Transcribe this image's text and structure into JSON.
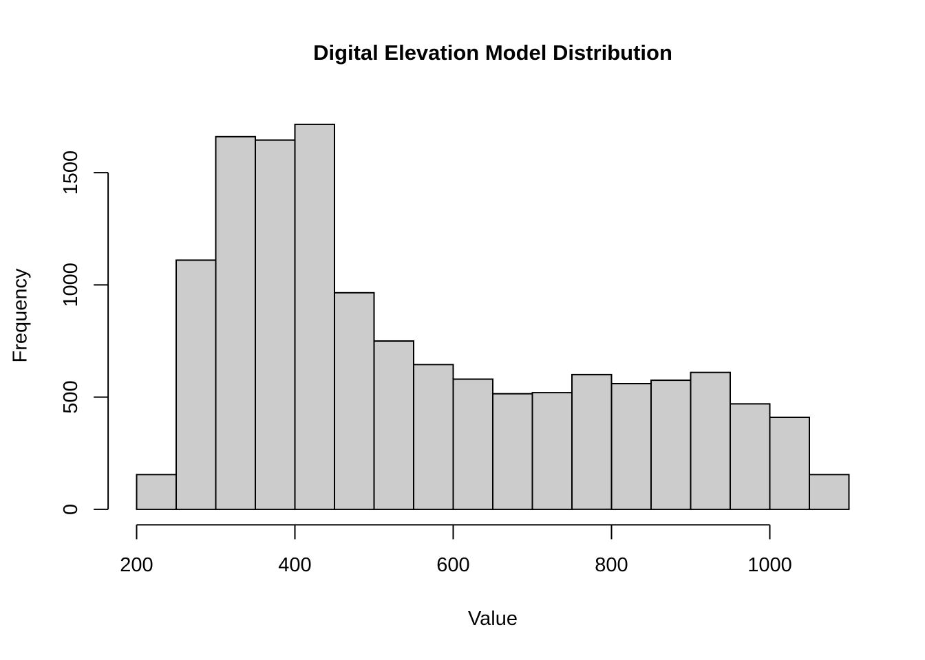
{
  "figure": {
    "title": "Digital Elevation Model Distribution",
    "xlabel": "Value",
    "ylabel": "Frequency"
  },
  "chart_data": {
    "type": "bar",
    "subtype": "histogram",
    "title": "Digital Elevation Model Distribution",
    "xlabel": "Value",
    "ylabel": "Frequency",
    "bin_width": 50,
    "bin_edges": [
      200,
      250,
      300,
      350,
      400,
      450,
      500,
      550,
      600,
      650,
      700,
      750,
      800,
      850,
      900,
      950,
      1000,
      1050,
      1100
    ],
    "categories": [
      "200-250",
      "250-300",
      "300-350",
      "350-400",
      "400-450",
      "450-500",
      "500-550",
      "550-600",
      "600-650",
      "650-700",
      "700-750",
      "750-800",
      "800-850",
      "850-900",
      "900-950",
      "950-1000",
      "1000-1050",
      "1050-1100"
    ],
    "values": [
      155,
      1110,
      1660,
      1645,
      1715,
      965,
      750,
      645,
      580,
      515,
      520,
      600,
      560,
      575,
      610,
      470,
      410,
      155
    ],
    "x_ticks": [
      200,
      400,
      600,
      800,
      1000
    ],
    "y_ticks": [
      0,
      500,
      1000,
      1500
    ],
    "xlim": [
      164,
      1136
    ],
    "ylim": [
      -69,
      1785
    ],
    "grid": false,
    "legend": "none",
    "colors": {
      "bar_fill": "#CCCCCC",
      "bar_stroke": "#000000",
      "axis": "#000000",
      "text": "#000000",
      "background": "#FFFFFF"
    }
  }
}
